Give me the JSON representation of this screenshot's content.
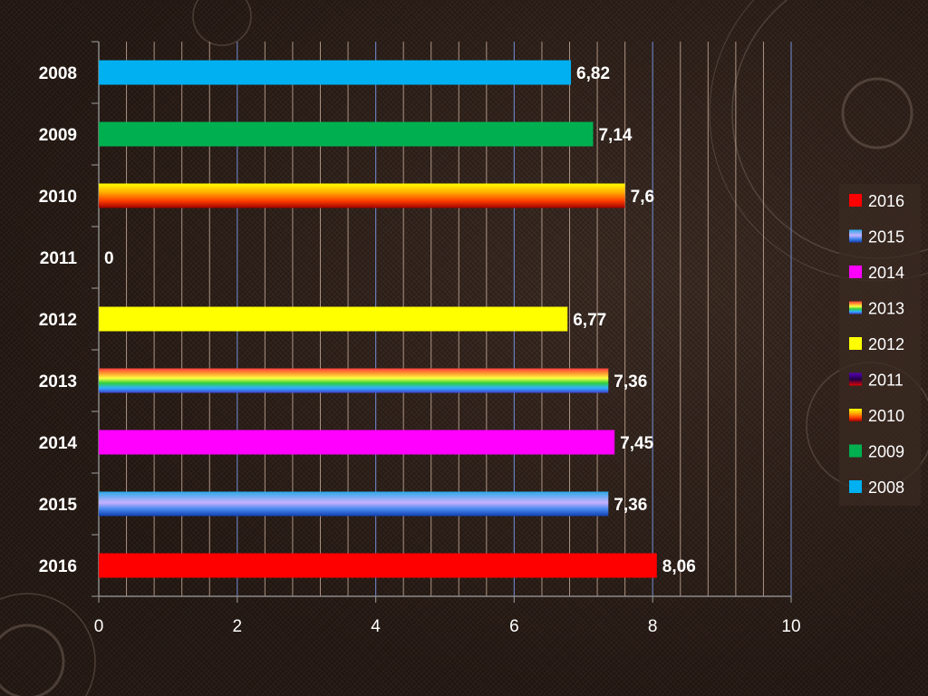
{
  "chart_data": {
    "type": "bar",
    "orientation": "horizontal",
    "categories": [
      "2008",
      "2009",
      "2010",
      "2011",
      "2012",
      "2013",
      "2014",
      "2015",
      "2016"
    ],
    "values": [
      6.82,
      7.14,
      7.6,
      0,
      6.77,
      7.36,
      7.45,
      7.36,
      8.06
    ],
    "value_labels": [
      "6,82",
      "7,14",
      "7,6",
      "0",
      "6,77",
      "7,36",
      "7,45",
      "7,36",
      "8,06"
    ],
    "xlim": [
      0,
      10
    ],
    "x_ticks": [
      0,
      2,
      4,
      6,
      8,
      10
    ],
    "x_tick_labels": [
      "0",
      "2",
      "4",
      "6",
      "8",
      "10"
    ],
    "grid": true,
    "legend": {
      "placement": "right",
      "entries": [
        "2016",
        "2015",
        "2014",
        "2013",
        "2012",
        "2011",
        "2010",
        "2009",
        "2008"
      ]
    },
    "colors": {
      "2008": "#00b0f0",
      "2009": "#00b050",
      "2010": "gradient-orange-red",
      "2011": "gradient-purple-red",
      "2012": "#ffff00",
      "2013": "rainbow",
      "2014": "#ff00ff",
      "2015": "gradient-blue-lavender",
      "2016": "#ff0000"
    }
  }
}
